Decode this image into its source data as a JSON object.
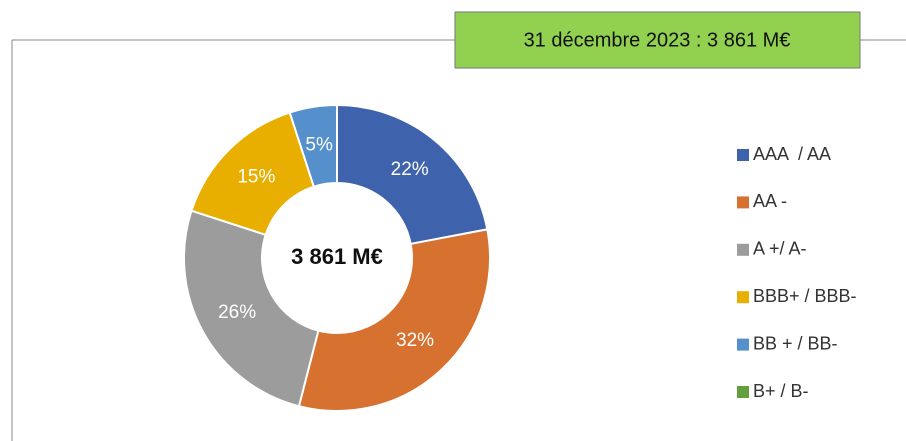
{
  "chart_data": {
    "type": "pie",
    "title": "31 décembre 2023 : 3 861 M€",
    "center_label": "3 861 M€",
    "categories": [
      "AAA  / AA",
      "AA -",
      "A +/ A-",
      "BBB+ / BBB-",
      "BB + / BB-",
      "B+ / B-"
    ],
    "values": [
      22,
      32,
      26,
      15,
      5,
      0
    ],
    "value_labels": [
      "22%",
      "32%",
      "26%",
      "15%",
      "5%",
      null
    ],
    "colors": [
      "#3f62ad",
      "#d7712f",
      "#9c9c9c",
      "#e8ae00",
      "#5590cc",
      "#62a03f"
    ],
    "legend": "right"
  }
}
